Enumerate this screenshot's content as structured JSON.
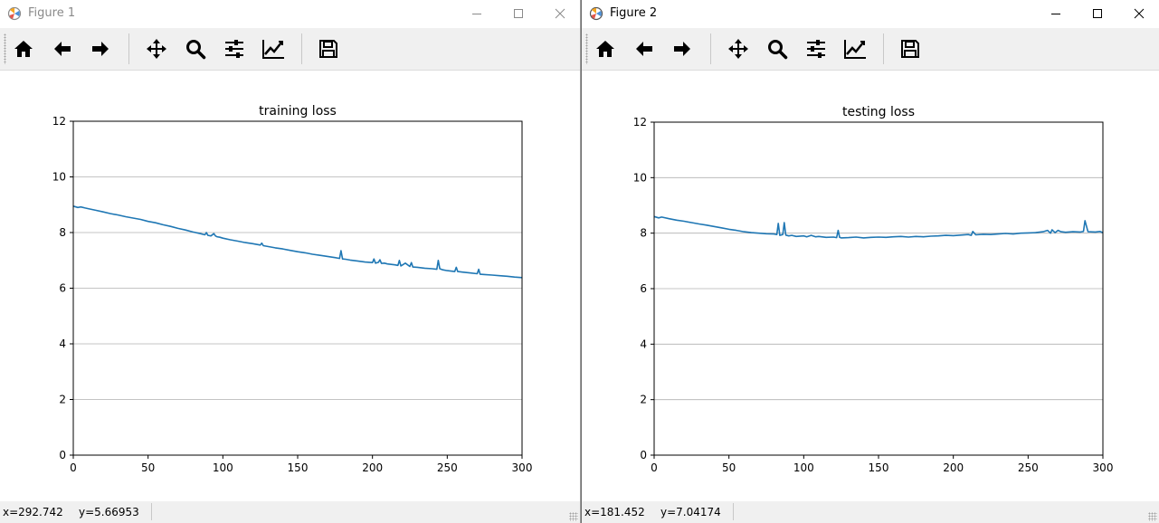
{
  "windows": [
    {
      "title": "Figure 1",
      "toolbar": {
        "home": "home-icon",
        "back": "arrow-left-icon",
        "forward": "arrow-right-icon",
        "pan": "move-icon",
        "zoom": "magnifier-icon",
        "subplots": "sliders-icon",
        "customize": "line-chart-icon",
        "save": "floppy-disk-icon"
      },
      "status": {
        "x": "x=292.742",
        "y": "y=5.66953"
      },
      "chart_data": {
        "type": "line",
        "title": "training loss",
        "xlabel": "",
        "ylabel": "",
        "xlim": [
          0,
          300
        ],
        "ylim": [
          0,
          12
        ],
        "xticks": [
          "0",
          "50",
          "100",
          "150",
          "200",
          "250",
          "300"
        ],
        "yticks": [
          "0",
          "2",
          "4",
          "6",
          "8",
          "10",
          "12"
        ],
        "grid": "horizontal",
        "line_color": "#1f77b4",
        "series": [
          {
            "x": [
              0,
              3,
              5,
              8,
              10,
              15,
              20,
              25,
              30,
              35,
              40,
              45,
              50,
              55,
              60,
              65,
              70,
              75,
              80,
              85,
              88,
              89,
              90,
              92,
              94,
              95,
              96,
              98,
              100,
              105,
              110,
              115,
              120,
              125,
              126,
              127,
              130,
              135,
              140,
              145,
              150,
              155,
              160,
              165,
              170,
              175,
              178,
              179,
              180,
              182,
              185,
              190,
              195,
              200,
              201,
              202,
              204,
              205,
              206,
              208,
              210,
              215,
              217,
              218,
              219,
              222,
              225,
              226,
              227,
              230,
              235,
              240,
              243,
              244,
              245,
              247,
              250,
              255,
              256,
              257,
              260,
              265,
              270,
              271,
              272,
              275,
              280,
              285,
              290,
              295,
              300
            ],
            "y": [
              8.95,
              8.9,
              8.92,
              8.88,
              8.86,
              8.8,
              8.74,
              8.68,
              8.63,
              8.57,
              8.52,
              8.47,
              8.4,
              8.35,
              8.28,
              8.22,
              8.15,
              8.09,
              8.02,
              7.96,
              7.92,
              8.0,
              7.9,
              7.88,
              7.96,
              7.88,
              7.85,
              7.83,
              7.8,
              7.74,
              7.69,
              7.64,
              7.6,
              7.55,
              7.62,
              7.53,
              7.5,
              7.45,
              7.41,
              7.36,
              7.31,
              7.27,
              7.22,
              7.18,
              7.14,
              7.1,
              7.07,
              7.35,
              7.05,
              7.04,
              7.01,
              6.98,
              6.94,
              6.92,
              7.05,
              6.9,
              6.93,
              7.02,
              6.89,
              6.9,
              6.87,
              6.84,
              6.82,
              7.0,
              6.8,
              6.9,
              6.78,
              6.92,
              6.76,
              6.75,
              6.72,
              6.7,
              6.68,
              7.0,
              6.7,
              6.66,
              6.63,
              6.6,
              6.75,
              6.6,
              6.58,
              6.55,
              6.52,
              6.68,
              6.5,
              6.49,
              6.47,
              6.45,
              6.43,
              6.4,
              6.38
            ]
          }
        ]
      }
    },
    {
      "title": "Figure 2",
      "toolbar": {
        "home": "home-icon",
        "back": "arrow-left-icon",
        "forward": "arrow-right-icon",
        "pan": "move-icon",
        "zoom": "magnifier-icon",
        "subplots": "sliders-icon",
        "customize": "line-chart-icon",
        "save": "floppy-disk-icon"
      },
      "status": {
        "x": "x=181.452",
        "y": "y=7.04174"
      },
      "chart_data": {
        "type": "line",
        "title": "testing loss",
        "xlabel": "",
        "ylabel": "",
        "xlim": [
          0,
          300
        ],
        "ylim": [
          0,
          12
        ],
        "xticks": [
          "0",
          "50",
          "100",
          "150",
          "200",
          "250",
          "300"
        ],
        "yticks": [
          "0",
          "2",
          "4",
          "6",
          "8",
          "10",
          "12"
        ],
        "grid": "horizontal",
        "line_color": "#1f77b4",
        "series": [
          {
            "x": [
              0,
              3,
              5,
              10,
              15,
              20,
              25,
              30,
              35,
              40,
              45,
              50,
              55,
              60,
              65,
              70,
              75,
              80,
              82,
              83,
              84,
              86,
              87,
              88,
              90,
              92,
              95,
              100,
              102,
              105,
              108,
              110,
              115,
              120,
              122,
              123,
              124,
              125,
              130,
              135,
              140,
              145,
              150,
              155,
              160,
              165,
              170,
              175,
              180,
              185,
              190,
              195,
              200,
              205,
              210,
              212,
              213,
              215,
              220,
              225,
              230,
              235,
              240,
              245,
              250,
              255,
              260,
              263,
              265,
              266,
              268,
              270,
              272,
              275,
              280,
              285,
              287,
              288,
              290,
              295,
              298,
              300
            ],
            "y": [
              8.6,
              8.55,
              8.58,
              8.52,
              8.47,
              8.43,
              8.38,
              8.33,
              8.29,
              8.24,
              8.19,
              8.14,
              8.1,
              8.05,
              8.02,
              8.0,
              7.98,
              7.97,
              7.95,
              8.35,
              7.92,
              7.95,
              8.38,
              7.93,
              7.9,
              7.92,
              7.88,
              7.9,
              7.87,
              7.92,
              7.87,
              7.88,
              7.85,
              7.86,
              7.84,
              8.1,
              7.85,
              7.83,
              7.84,
              7.86,
              7.83,
              7.85,
              7.86,
              7.85,
              7.87,
              7.88,
              7.86,
              7.88,
              7.87,
              7.89,
              7.9,
              7.92,
              7.91,
              7.93,
              7.95,
              7.92,
              8.06,
              7.94,
              7.96,
              7.95,
              7.97,
              7.99,
              7.97,
              8.0,
              8.01,
              8.02,
              8.05,
              8.1,
              8.0,
              8.12,
              8.02,
              8.1,
              8.05,
              8.03,
              8.05,
              8.04,
              8.06,
              8.45,
              8.05,
              8.04,
              8.06,
              8.02
            ]
          }
        ]
      }
    }
  ]
}
